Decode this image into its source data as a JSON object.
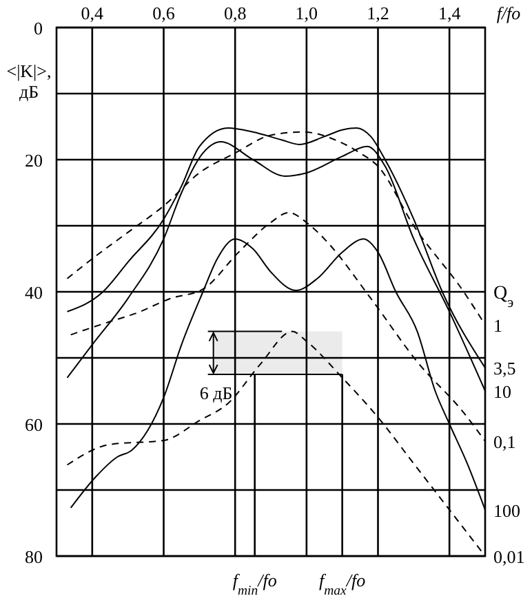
{
  "chart_data": {
    "type": "line",
    "xlabel": "f/fo",
    "ylabel": "<|K|>, дБ",
    "legend_title": "Q$_{э}$",
    "xlim": [
      0.3,
      1.5
    ],
    "xticks": [
      {
        "value": 0.4,
        "label": "0,4"
      },
      {
        "value": 0.6,
        "label": "0,6"
      },
      {
        "value": 0.8,
        "label": "0,8"
      },
      {
        "value": 1.0,
        "label": "1,0"
      },
      {
        "value": 1.2,
        "label": "1,2"
      },
      {
        "value": 1.4,
        "label": "1,4"
      }
    ],
    "ylim": [
      80,
      0
    ],
    "yticks": [
      0,
      {
        "value": 10,
        "label": null
      },
      20,
      {
        "value": 30,
        "label": null
      },
      40,
      {
        "value": 50,
        "label": null
      },
      60,
      {
        "value": 70,
        "label": null
      },
      80
    ],
    "grid": true,
    "series": [
      {
        "name": "1",
        "color": "#000000",
        "line_style": "dashed",
        "x": [
          0.33,
          0.4,
          0.5,
          0.6,
          0.7,
          0.8,
          0.9,
          0.99,
          1.08,
          1.15,
          1.2,
          1.3,
          1.44,
          1.5
        ],
        "values": [
          38,
          35,
          31,
          27,
          22,
          19,
          16.3,
          15.8,
          17,
          19,
          21,
          30,
          40,
          45
        ]
      },
      {
        "name": "3,5",
        "color": "#000000",
        "line_style": "solid",
        "x": [
          0.33,
          0.43,
          0.5,
          0.6,
          0.65,
          0.7,
          0.78,
          0.85,
          0.93,
          0.98,
          1.05,
          1.1,
          1.14,
          1.18,
          1.22,
          1.3,
          1.38,
          1.5
        ],
        "values": [
          43,
          40,
          35.5,
          29,
          24,
          18,
          15.2,
          15.8,
          17,
          17.7,
          16.5,
          15.5,
          15.2,
          16.5,
          20,
          29,
          40,
          51.5
        ]
      },
      {
        "name": "10",
        "color": "#000000",
        "line_style": "solid",
        "x": [
          0.33,
          0.4,
          0.5,
          0.6,
          0.65,
          0.71,
          0.76,
          0.85,
          0.94,
          1.0,
          1.1,
          1.17,
          1.22,
          1.3,
          1.4,
          1.5
        ],
        "values": [
          53,
          48,
          41,
          32,
          25,
          19,
          17.3,
          20,
          22.5,
          22,
          19.5,
          18,
          21,
          32,
          43,
          55
        ]
      },
      {
        "name": "0,1",
        "color": "#000000",
        "line_style": "dashed",
        "x": [
          0.34,
          0.45,
          0.52,
          0.62,
          0.71,
          0.81,
          0.9,
          0.95,
          1.0,
          1.05,
          1.18,
          1.31,
          1.44,
          1.5
        ],
        "values": [
          46.5,
          44.5,
          43.3,
          41,
          39.6,
          34,
          29.5,
          28,
          29.5,
          32,
          41,
          50.6,
          58.3,
          62.6
        ]
      },
      {
        "name": "100",
        "color": "#000000",
        "line_style": "solid",
        "x": [
          0.34,
          0.41,
          0.47,
          0.51,
          0.6,
          0.65,
          0.71,
          0.75,
          0.8,
          0.85,
          0.9,
          0.97,
          1.03,
          1.1,
          1.16,
          1.2,
          1.25,
          1.31,
          1.36,
          1.4,
          1.45,
          1.5
        ],
        "values": [
          72.7,
          68,
          65,
          64,
          56,
          48,
          40,
          35,
          32,
          33.5,
          37,
          39.8,
          38,
          34,
          32,
          34,
          40,
          46,
          55,
          60,
          66,
          73
        ]
      },
      {
        "name": "0,01",
        "color": "#000000",
        "line_style": "dashed",
        "x": [
          0.33,
          0.45,
          0.6,
          0.7,
          0.78,
          0.87,
          0.96,
          1.0,
          1.1,
          1.2,
          1.3,
          1.39,
          1.5
        ],
        "values": [
          66.2,
          63.1,
          62.5,
          59.5,
          56.9,
          51,
          46,
          47.5,
          53,
          59,
          66,
          72.3,
          80
        ]
      }
    ],
    "ref_lines": [
      {
        "axis": "x",
        "value": 0.855,
        "label": "f$_{min}$/fo"
      },
      {
        "axis": "x",
        "value": 1.1,
        "label": "f$_{max}$/fo"
      }
    ],
    "bands": [
      {
        "axis": "y",
        "from": 46,
        "to": 52.5,
        "label": "6 дБ",
        "color": "#000000"
      }
    ]
  }
}
